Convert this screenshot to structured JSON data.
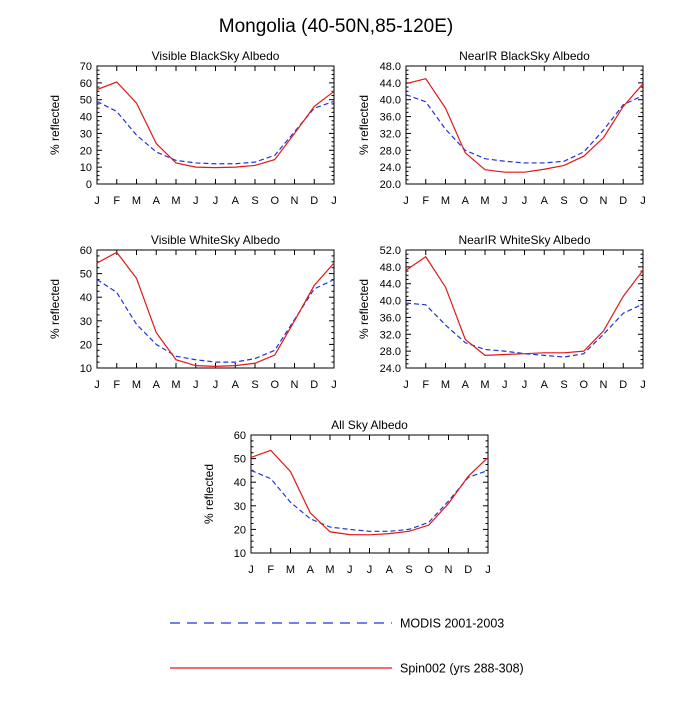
{
  "title": "Mongolia (40-50N,85-120E)",
  "legend": [
    {
      "label": "MODIS 2001-2003",
      "color": "#2233dd",
      "dash": true
    },
    {
      "label": "Spin002 (yrs 288-308)",
      "color": "#e01818",
      "dash": false
    }
  ],
  "chart_data": [
    {
      "type": "line",
      "title": "Visible BlackSky Albedo",
      "ylabel": "% reflected",
      "categories": [
        "J",
        "F",
        "M",
        "A",
        "M",
        "J",
        "J",
        "A",
        "S",
        "O",
        "N",
        "D",
        "J"
      ],
      "ylim": [
        0,
        70
      ],
      "yticks": [
        "0",
        "10",
        "20",
        "30",
        "40",
        "50",
        "60",
        "70"
      ],
      "series": [
        {
          "name": "MODIS 2001-2003",
          "values": [
            49,
            43,
            29,
            19,
            14,
            12.5,
            12,
            12,
            13,
            17,
            31,
            45,
            49
          ]
        },
        {
          "name": "Spin002 (yrs 288-308)",
          "values": [
            56,
            60.5,
            48,
            24,
            12.5,
            10,
            9.7,
            10,
            11,
            14.5,
            30,
            46,
            55
          ]
        }
      ]
    },
    {
      "type": "line",
      "title": "NearIR BlackSky Albedo",
      "ylabel": "% reflected",
      "categories": [
        "J",
        "F",
        "M",
        "A",
        "M",
        "J",
        "J",
        "A",
        "S",
        "O",
        "N",
        "D",
        "J"
      ],
      "ylim": [
        20,
        48
      ],
      "yticks": [
        "20.0",
        "24.0",
        "28.0",
        "32.0",
        "36.0",
        "40.0",
        "44.0",
        "48.0"
      ],
      "series": [
        {
          "name": "MODIS 2001-2003",
          "values": [
            41.2,
            39.5,
            33,
            28,
            26,
            25.4,
            25,
            25,
            25.4,
            27.6,
            32.8,
            38.8,
            41
          ]
        },
        {
          "name": "Spin002 (yrs 288-308)",
          "values": [
            43.8,
            45,
            38,
            27.4,
            23.4,
            22.8,
            22.8,
            23.5,
            24.4,
            26.6,
            31,
            38.4,
            43.8
          ]
        }
      ]
    },
    {
      "type": "line",
      "title": "Visible WhiteSky Albedo",
      "ylabel": "% reflected",
      "categories": [
        "J",
        "F",
        "M",
        "A",
        "M",
        "J",
        "J",
        "A",
        "S",
        "O",
        "N",
        "D",
        "J"
      ],
      "ylim": [
        10,
        60
      ],
      "yticks": [
        "10",
        "20",
        "30",
        "40",
        "50",
        "60"
      ],
      "series": [
        {
          "name": "MODIS 2001-2003",
          "values": [
            47.5,
            42,
            28.5,
            20,
            15,
            13.5,
            12.5,
            12.5,
            14,
            17.5,
            30.5,
            43.5,
            47.5
          ]
        },
        {
          "name": "Spin002 (yrs 288-308)",
          "values": [
            54.5,
            59,
            48,
            25,
            13.5,
            11,
            10.7,
            11,
            12,
            15.5,
            30,
            45,
            54.5
          ]
        }
      ]
    },
    {
      "type": "line",
      "title": "NearIR WhiteSky Albedo",
      "ylabel": "% reflected",
      "categories": [
        "J",
        "F",
        "M",
        "A",
        "M",
        "J",
        "J",
        "A",
        "S",
        "O",
        "N",
        "D",
        "J"
      ],
      "ylim": [
        24,
        52
      ],
      "yticks": [
        "24.0",
        "28.0",
        "32.0",
        "36.0",
        "40.0",
        "44.0",
        "48.0",
        "52.0"
      ],
      "series": [
        {
          "name": "MODIS 2001-2003",
          "values": [
            39.4,
            39,
            34.2,
            30,
            28.4,
            28,
            27.4,
            27,
            26.6,
            27.4,
            32,
            37,
            39.2
          ]
        },
        {
          "name": "Spin002 (yrs 288-308)",
          "values": [
            47.2,
            50.4,
            43.2,
            30.8,
            27,
            27.2,
            27.4,
            27.6,
            27.6,
            28,
            32.8,
            41,
            47.2
          ]
        }
      ]
    },
    {
      "type": "line",
      "title": "All Sky Albedo",
      "ylabel": "% reflected",
      "categories": [
        "J",
        "F",
        "M",
        "A",
        "M",
        "J",
        "J",
        "A",
        "S",
        "O",
        "N",
        "D",
        "J"
      ],
      "ylim": [
        10,
        60
      ],
      "yticks": [
        "10",
        "20",
        "30",
        "40",
        "50",
        "60"
      ],
      "series": [
        {
          "name": "MODIS 2001-2003",
          "values": [
            45,
            41.5,
            31.5,
            24.5,
            21,
            20,
            19.2,
            19.2,
            20,
            23,
            32,
            42,
            45
          ]
        },
        {
          "name": "Spin002 (yrs 288-308)",
          "values": [
            50.5,
            53.5,
            44.5,
            27,
            19,
            17.8,
            17.7,
            18.2,
            19.2,
            21.8,
            31,
            42.5,
            50.5
          ]
        }
      ]
    }
  ]
}
